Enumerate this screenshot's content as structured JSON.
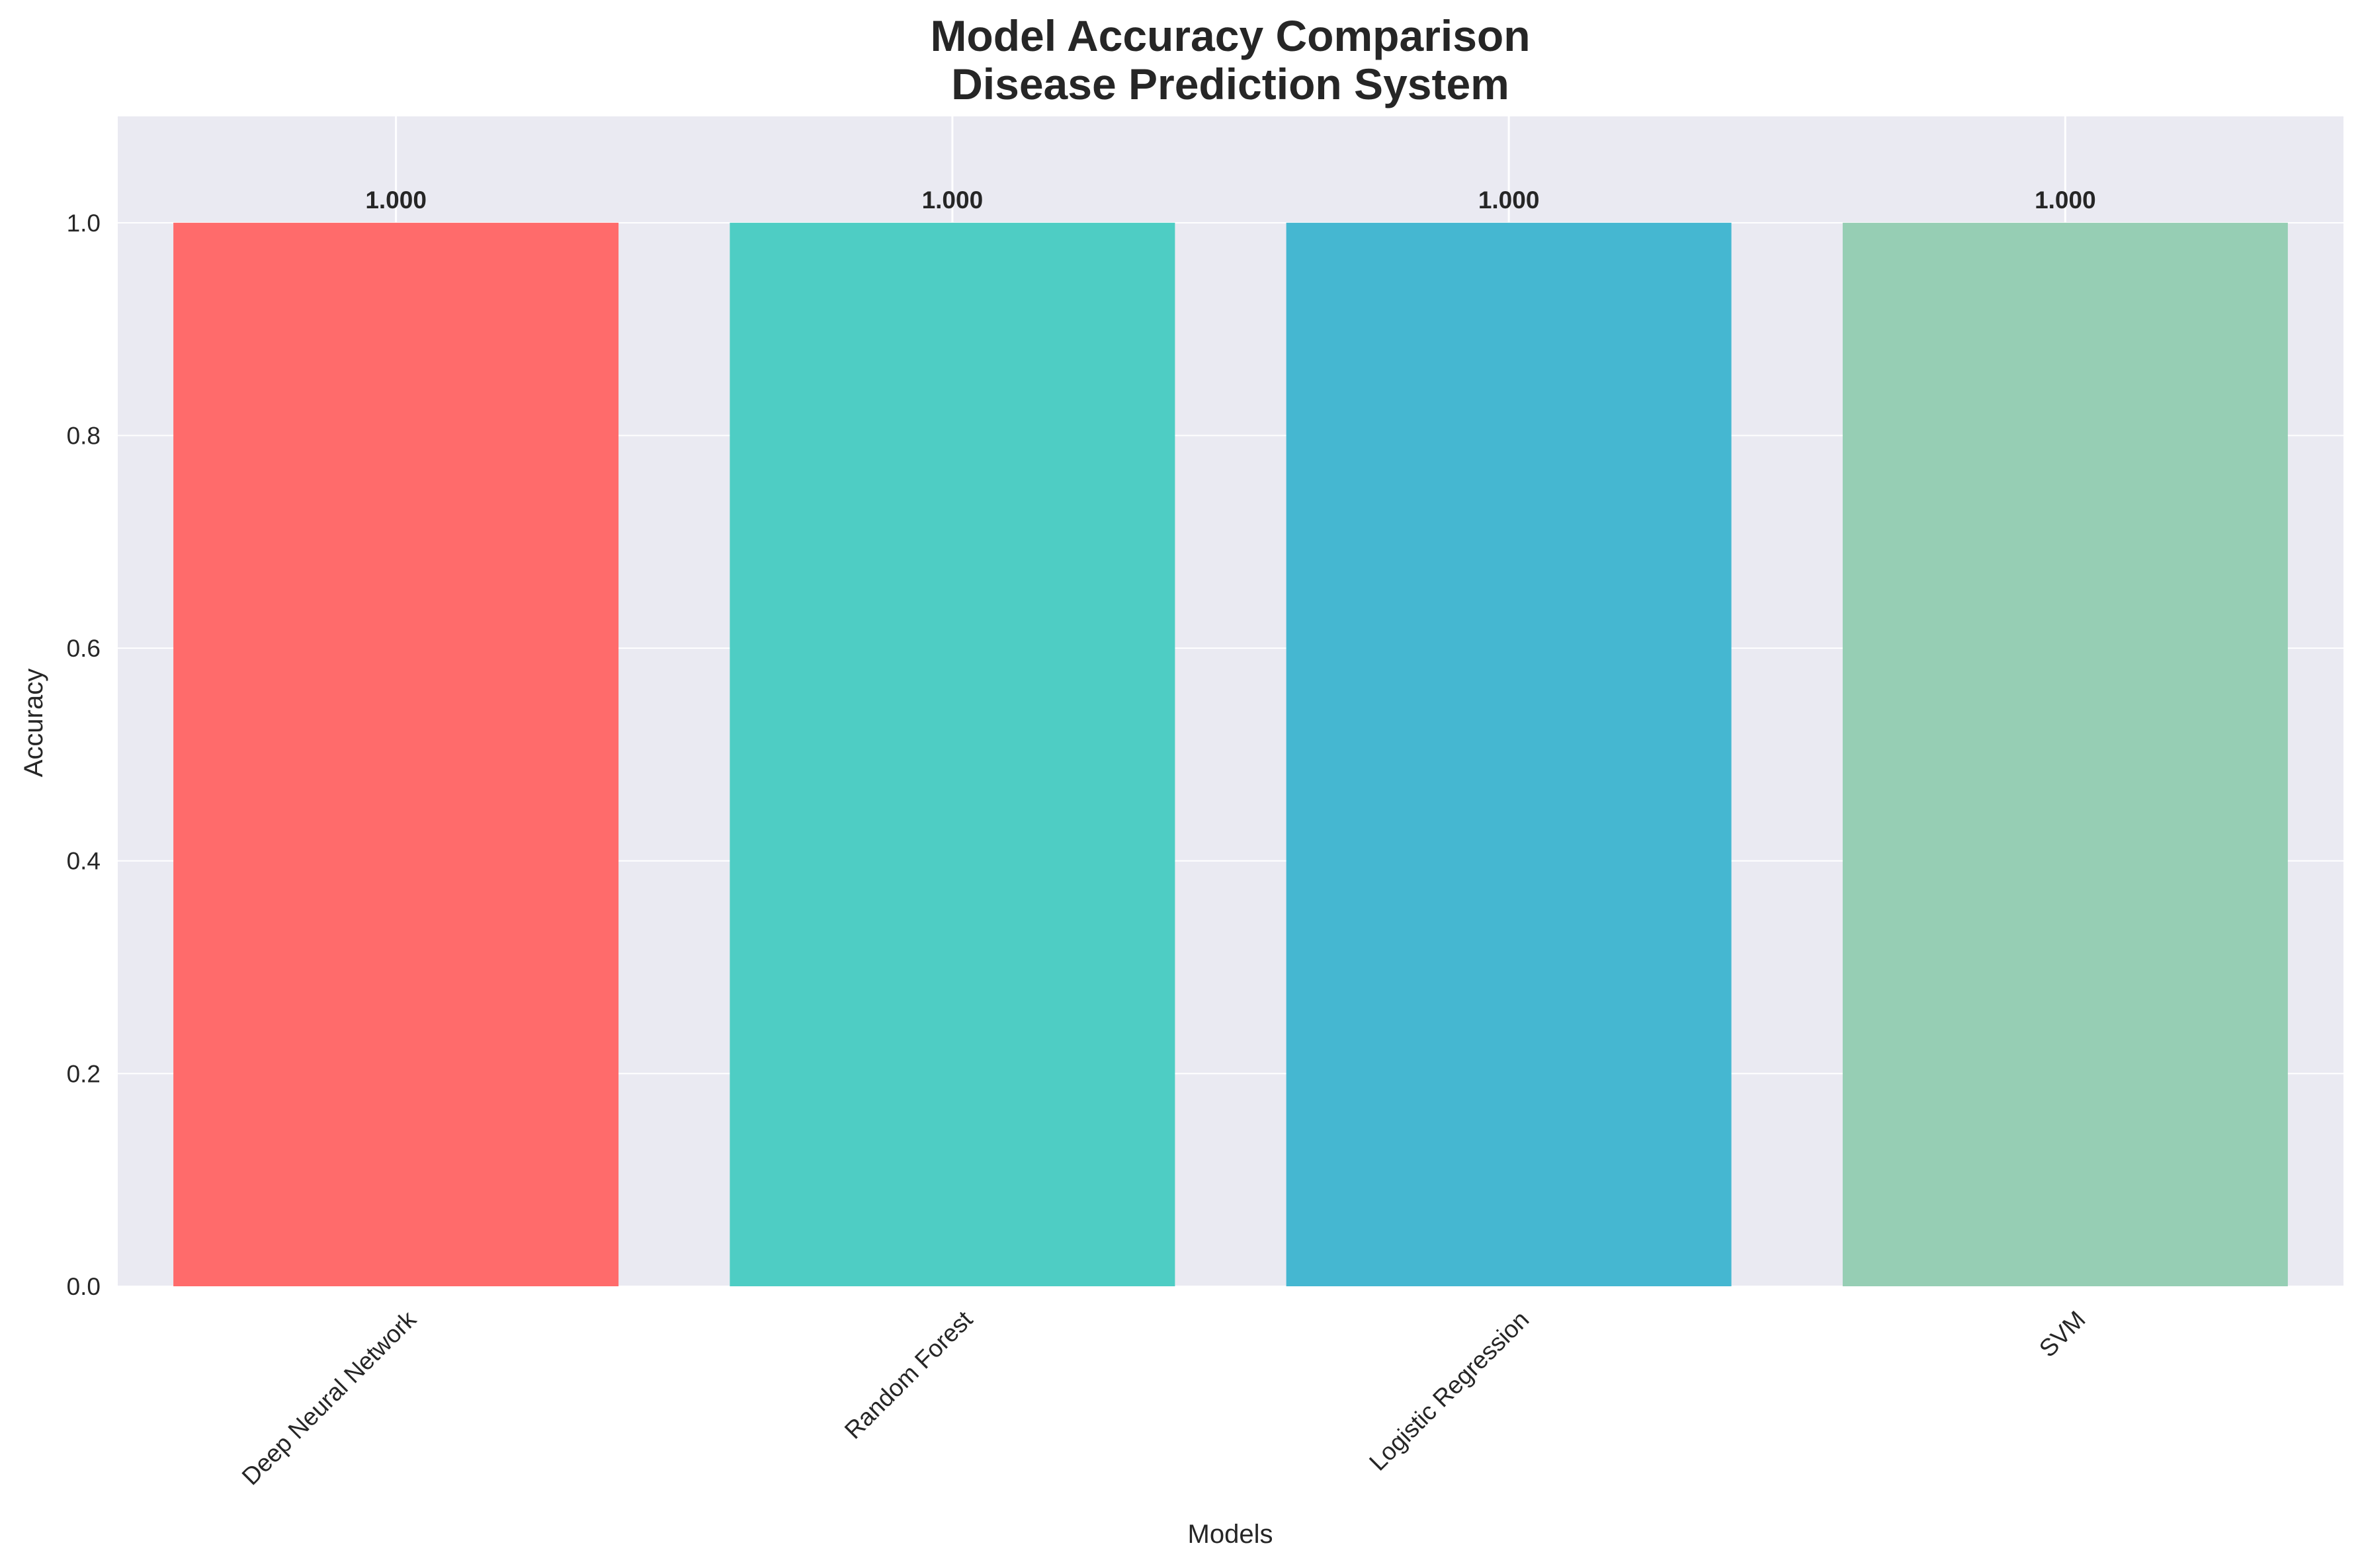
{
  "chart_data": {
    "type": "bar",
    "title": "Model Accuracy Comparison",
    "subtitle": "Disease Prediction System",
    "xlabel": "Models",
    "ylabel": "Accuracy",
    "categories": [
      "Deep Neural Network",
      "Random Forest",
      "Logistic Regression",
      "SVM"
    ],
    "values": [
      1.0,
      1.0,
      1.0,
      1.0
    ],
    "value_labels": [
      "1.000",
      "1.000",
      "1.000",
      "1.000"
    ],
    "colors": [
      "#FF6B6B",
      "#4ECDC4",
      "#45B7D1",
      "#96CEB4"
    ],
    "ylim": [
      0,
      1.1
    ],
    "yticks": [
      0.0,
      0.2,
      0.4,
      0.6,
      0.8,
      1.0
    ],
    "ytick_labels": [
      "0.0",
      "0.2",
      "0.4",
      "0.6",
      "0.8",
      "1.0"
    ],
    "xtick_rotation": 45,
    "grid": true,
    "legend": "none",
    "background_color": "#EAEAF2",
    "grid_color": "#FFFFFF"
  }
}
